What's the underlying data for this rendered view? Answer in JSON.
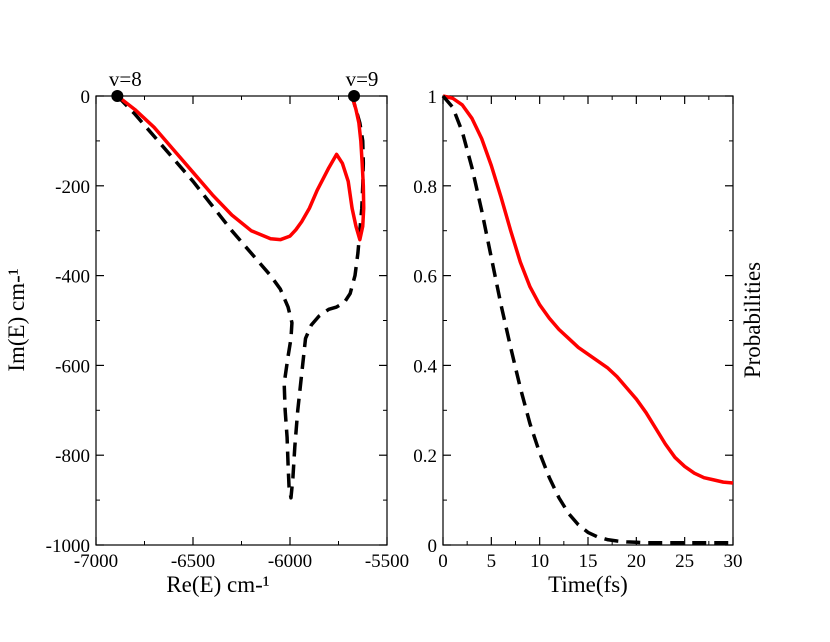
{
  "chart_data": [
    {
      "type": "line",
      "panel": "left",
      "title": "",
      "xlabel": "Re(E) cm-¹",
      "ylabel": "Im(E) cm-¹",
      "xlim": [
        -7000,
        -5500
      ],
      "ylim": [
        -1000,
        0
      ],
      "xticks": [
        -7000,
        -6500,
        -6000,
        -5500
      ],
      "yticks": [
        0,
        -200,
        -400,
        -600,
        -800,
        -1000
      ],
      "grid": false,
      "markers": [
        {
          "label": "v=8",
          "x": -6890,
          "y": 0
        },
        {
          "label": "v=9",
          "x": -5670,
          "y": 0
        }
      ],
      "series": [
        {
          "name": "dashed-black",
          "color": "#000000",
          "style": "dashed",
          "x": [
            -6890,
            -6800,
            -6700,
            -6600,
            -6500,
            -6400,
            -6300,
            -6200,
            -6100,
            -6050,
            -6010,
            -5990,
            -5995,
            -6010,
            -6030,
            -6025,
            -6015,
            -6010,
            -6005,
            -5995,
            -5985,
            -5975,
            -5960,
            -5940,
            -5920,
            -5890,
            -5850,
            -5800,
            -5760,
            -5720,
            -5690,
            -5665,
            -5650,
            -5640,
            -5630,
            -5625,
            -5622,
            -5625,
            -5640,
            -5660,
            -5680
          ],
          "y": [
            0,
            -40,
            -90,
            -140,
            -190,
            -245,
            -300,
            -350,
            -400,
            -430,
            -470,
            -505,
            -540,
            -580,
            -640,
            -700,
            -760,
            -820,
            -870,
            -895,
            -850,
            -780,
            -700,
            -620,
            -540,
            -510,
            -490,
            -475,
            -470,
            -460,
            -440,
            -400,
            -350,
            -300,
            -250,
            -200,
            -150,
            -100,
            -60,
            -30,
            0
          ]
        },
        {
          "name": "solid-red",
          "color": "#ff0000",
          "style": "solid",
          "x": [
            -6890,
            -6800,
            -6700,
            -6600,
            -6500,
            -6400,
            -6300,
            -6200,
            -6100,
            -6050,
            -6000,
            -5970,
            -5940,
            -5900,
            -5860,
            -5800,
            -5760,
            -5730,
            -5700,
            -5680,
            -5660,
            -5640,
            -5625,
            -5620,
            -5622,
            -5628,
            -5635,
            -5645,
            -5660,
            -5680
          ],
          "y": [
            0,
            -30,
            -70,
            -120,
            -170,
            -220,
            -265,
            -300,
            -318,
            -320,
            -312,
            -298,
            -280,
            -250,
            -210,
            -160,
            -130,
            -150,
            -190,
            -250,
            -290,
            -320,
            -290,
            -250,
            -200,
            -150,
            -100,
            -60,
            -30,
            0
          ]
        }
      ]
    },
    {
      "type": "line",
      "panel": "right",
      "title": "",
      "xlabel": "Time(fs)",
      "ylabel": "Probabilities",
      "xlim": [
        0,
        30
      ],
      "ylim": [
        0,
        1
      ],
      "xticks": [
        0,
        5,
        10,
        15,
        20,
        25,
        30
      ],
      "yticks": [
        0,
        0.2,
        0.4,
        0.6,
        0.8,
        1
      ],
      "grid": false,
      "series": [
        {
          "name": "solid-red",
          "color": "#ff0000",
          "style": "solid",
          "x": [
            0,
            1,
            2,
            3,
            4,
            5,
            6,
            7,
            8,
            9,
            10,
            11,
            12,
            13,
            14,
            15,
            16,
            17,
            18,
            19,
            20,
            21,
            22,
            23,
            24,
            25,
            26,
            27,
            28,
            29,
            30
          ],
          "y": [
            1,
            0.995,
            0.98,
            0.95,
            0.905,
            0.845,
            0.775,
            0.7,
            0.63,
            0.575,
            0.535,
            0.505,
            0.48,
            0.46,
            0.44,
            0.425,
            0.41,
            0.395,
            0.375,
            0.35,
            0.325,
            0.295,
            0.26,
            0.225,
            0.195,
            0.175,
            0.16,
            0.15,
            0.145,
            0.14,
            0.138
          ]
        },
        {
          "name": "dashed-black",
          "color": "#000000",
          "style": "dashed",
          "x": [
            0,
            1,
            2,
            3,
            4,
            5,
            6,
            7,
            8,
            9,
            10,
            11,
            12,
            13,
            14,
            15,
            16,
            17,
            18,
            19,
            20,
            21,
            22,
            23,
            24,
            25,
            26,
            27,
            28,
            29,
            30
          ],
          "y": [
            1,
            0.975,
            0.92,
            0.84,
            0.745,
            0.64,
            0.535,
            0.44,
            0.35,
            0.27,
            0.205,
            0.15,
            0.105,
            0.07,
            0.045,
            0.028,
            0.018,
            0.012,
            0.009,
            0.007,
            0.006,
            0.005,
            0.005,
            0.005,
            0.005,
            0.005,
            0.005,
            0.005,
            0.005,
            0.005,
            0.005
          ]
        }
      ]
    }
  ]
}
